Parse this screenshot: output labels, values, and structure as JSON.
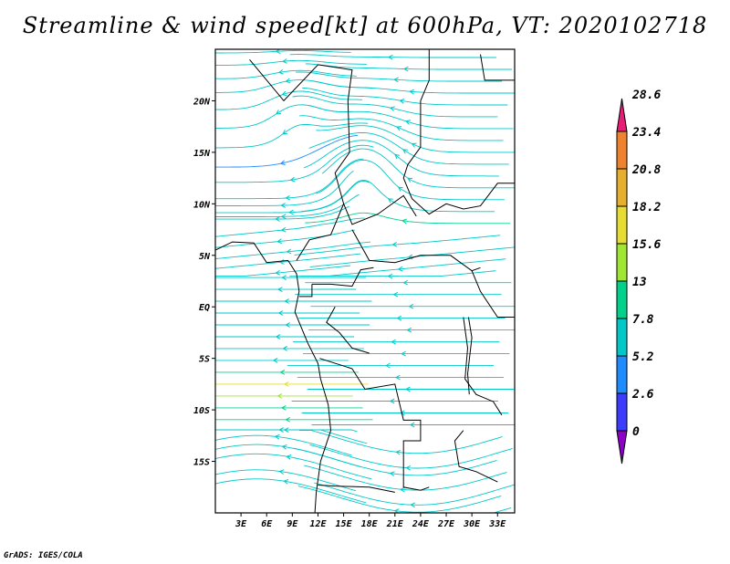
{
  "title": "Streamline & wind speed[kt] at 600hPa, VT: 2020102718",
  "footer": "GrADS: IGES/COLA",
  "map": {
    "lon_range": [
      0,
      35
    ],
    "lat_range": [
      -20,
      25
    ],
    "lat_ticks": [
      {
        "value": 20,
        "label": "20N"
      },
      {
        "value": 15,
        "label": "15N"
      },
      {
        "value": 10,
        "label": "10N"
      },
      {
        "value": 5,
        "label": "5N"
      },
      {
        "value": 0,
        "label": "EQ"
      },
      {
        "value": -5,
        "label": "5S"
      },
      {
        "value": -10,
        "label": "10S"
      },
      {
        "value": -15,
        "label": "15S"
      }
    ],
    "lon_ticks": [
      {
        "value": 3,
        "label": "3E"
      },
      {
        "value": 6,
        "label": "6E"
      },
      {
        "value": 9,
        "label": "9E"
      },
      {
        "value": 12,
        "label": "12E"
      },
      {
        "value": 15,
        "label": "15E"
      },
      {
        "value": 18,
        "label": "18E"
      },
      {
        "value": 21,
        "label": "21E"
      },
      {
        "value": 24,
        "label": "24E"
      },
      {
        "value": 27,
        "label": "27E"
      },
      {
        "value": 30,
        "label": "30E"
      },
      {
        "value": 33,
        "label": "33E"
      }
    ]
  },
  "colorbar": {
    "labels": [
      "0",
      "2.6",
      "5.2",
      "7.8",
      "13",
      "15.6",
      "18.2",
      "20.8",
      "23.4",
      "28.6"
    ],
    "colors": [
      "#8c00c8",
      "#3c3cff",
      "#1e8cff",
      "#00c8c8",
      "#00d28c",
      "#a0e632",
      "#e6dc32",
      "#e6af2d",
      "#f0822d",
      "#e61e78"
    ]
  }
}
